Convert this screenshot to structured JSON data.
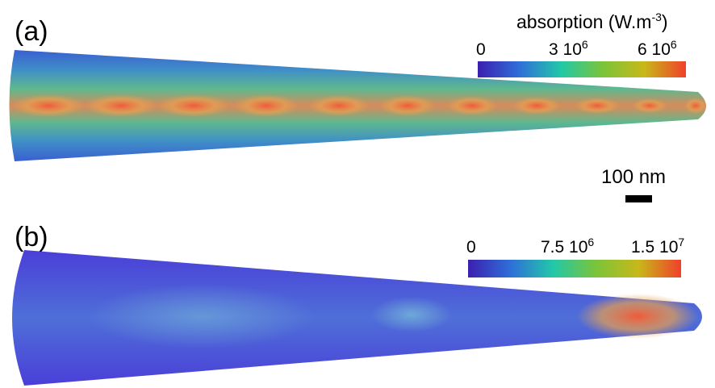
{
  "panels": [
    {
      "label": "(a)",
      "colorbar": {
        "title": "absorption (W.m",
        "title_exponent": "-3",
        "title_end": ")",
        "ticks": [
          {
            "text": "0"
          },
          {
            "text": "3 10",
            "exponent": "6"
          },
          {
            "text": "6 10",
            "exponent": "6"
          }
        ]
      },
      "scale_bar": "100 nm"
    },
    {
      "label": "(b)",
      "colorbar": {
        "ticks": [
          {
            "text": "0"
          },
          {
            "text": "7.5 10",
            "exponent": "6"
          },
          {
            "text": "1.5 10",
            "exponent": "7"
          }
        ]
      }
    }
  ]
}
